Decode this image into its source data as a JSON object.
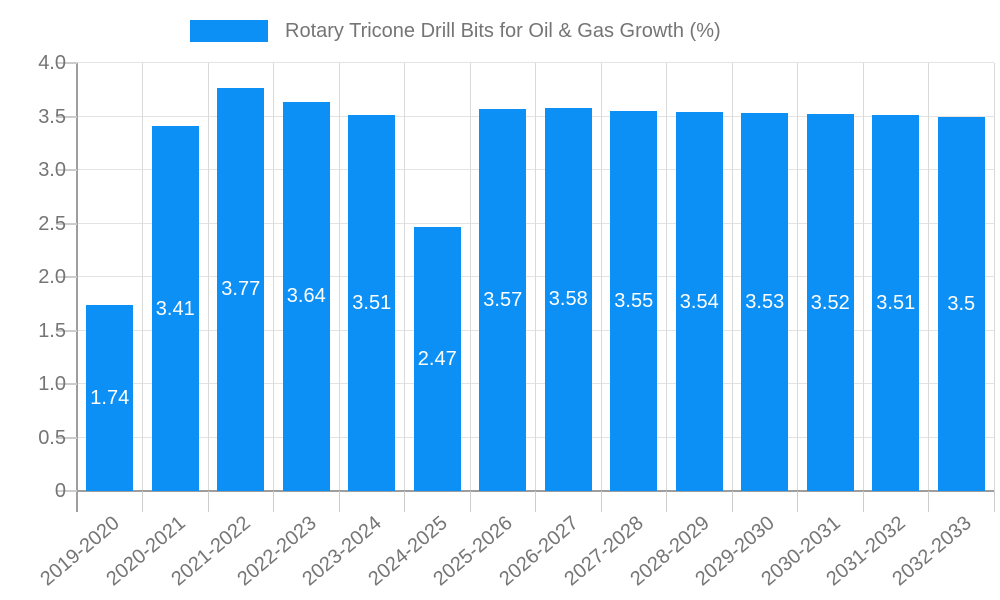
{
  "legend": {
    "series_label": "Rotary Tricone Drill Bits for Oil & Gas Growth (%)"
  },
  "chart_data": {
    "type": "bar",
    "title": "Rotary Tricone Drill Bits for Oil & Gas Growth (%)",
    "categories": [
      "2019-2020",
      "2020-2021",
      "2021-2022",
      "2022-2023",
      "2023-2024",
      "2024-2025",
      "2025-2026",
      "2026-2027",
      "2027-2028",
      "2028-2029",
      "2029-2030",
      "2030-2031",
      "2031-2032",
      "2032-2033"
    ],
    "values": [
      1.74,
      3.41,
      3.77,
      3.64,
      3.51,
      2.47,
      3.57,
      3.58,
      3.55,
      3.54,
      3.53,
      3.52,
      3.51,
      3.5
    ],
    "value_labels": [
      "1.74",
      "3.41",
      "3.77",
      "3.64",
      "3.51",
      "2.47",
      "3.57",
      "3.58",
      "3.55",
      "3.54",
      "3.53",
      "3.52",
      "3.51",
      "3.5"
    ],
    "xlabel": "",
    "ylabel": "",
    "ylim": [
      0,
      4.0
    ],
    "yticks": [
      0,
      0.5,
      1.0,
      1.5,
      2.0,
      2.5,
      3.0,
      3.5,
      4.0
    ],
    "ytick_labels": [
      "0",
      "0.5",
      "1.0",
      "1.5",
      "2.0",
      "2.5",
      "3.0",
      "3.5",
      "4.0"
    ],
    "grid": true,
    "legend_position": "top-center",
    "colors": {
      "bar": "#0d90f5",
      "bar_value_label": "#ffffff",
      "axis_text": "#757575",
      "hgrid": "#e3e3e3",
      "vgrid": "#d9d9d9",
      "tick": "#cccccc",
      "axis_line": "#9e9e9e",
      "background": "#ffffff"
    }
  }
}
